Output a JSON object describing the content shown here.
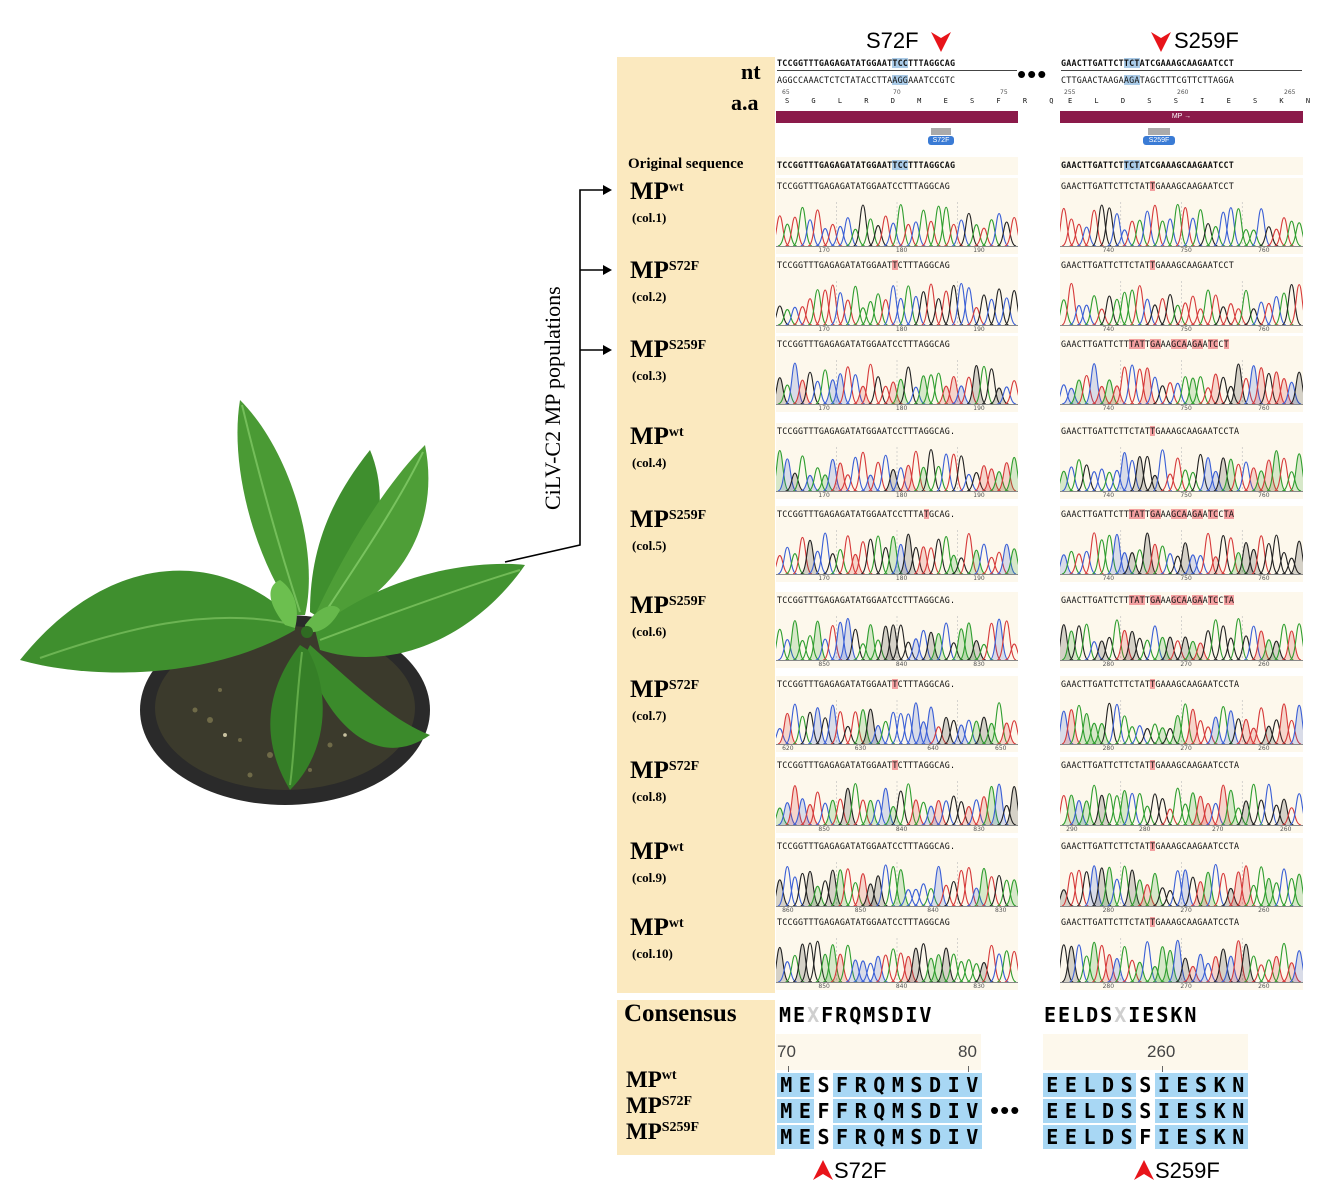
{
  "colors": {
    "label_panel": "#fbe9bf",
    "mutation": "#f3a0a0",
    "selection": "#aacbe8",
    "mp_bar": "#8b1a4a",
    "arrow": "#e8141a",
    "consensus_cell": "#a8d7f4"
  },
  "header": {
    "mut1": "S72F",
    "mut2": "S259F",
    "nt_label": "nt",
    "aa_label": "a.a",
    "ellipsis": "•••",
    "left": {
      "top_seq": "TCCGGTTTGAGAGATATGGAATCCTTTAGGCAG",
      "bottom_seq": "AGGCCAAACTCTCTATACCTTAGGAAATCCGTC",
      "ticks": [
        "65",
        "70",
        "75"
      ],
      "aa": "S G L R D M E S F R Q",
      "badge": "S72F"
    },
    "right": {
      "top_seq": "GAACTTGATTCTTCTATCGAAAGCAAGAATCCT",
      "bottom_seq": "CTTGAACTAAGAAGATAGCTTTCGTTCTTAGGA",
      "ticks": [
        "255",
        "260",
        "265"
      ],
      "aa": "E L D S S I E S K N P",
      "mp_bar_label": "MP →",
      "badge": "S259F"
    }
  },
  "side_label": "CiLV-C2 MP populations",
  "original": {
    "label": "Original sequence",
    "left": "TCCGGTTTGAGAGATATGGAATCCTTTAGGCAG",
    "right": "GAACTTGATTCTTCTATCGAAAGCAAGAATCCT"
  },
  "rows": [
    {
      "mp": "MP",
      "sup": "wt",
      "col": "(col.1)",
      "left": "TCCGGTTTGAGAGATATGGAATCCTTTAGGCAG",
      "right": "GAACTTGATTCTTCTATTGAAAGCAAGAATCCT",
      "lticks": [
        "170",
        "180",
        "190"
      ],
      "rticks": [
        "740",
        "750",
        "760"
      ]
    },
    {
      "mp": "MP",
      "sup": "S72F",
      "col": "(col.2)",
      "left": "TCCGGTTTGAGAGATATGGAATTCTTTAGGCAG",
      "right": "GAACTTGATTCTTCTATTGAAAGCAAGAATCCT",
      "lticks": [
        "170",
        "180",
        "190"
      ],
      "rticks": [
        "740",
        "750",
        "760"
      ]
    },
    {
      "mp": "MP",
      "sup": "S259F",
      "col": "(col.3)",
      "left": "TCCGGTTTGAGAGATATGGAATCCTTTAGGCAG",
      "right": "GAACTTGATTCTTTATTGAAAGCAAGAATCCT",
      "lticks": [
        "170",
        "180",
        "190"
      ],
      "rticks": [
        "740",
        "750",
        "760"
      ]
    },
    {
      "mp": "MP",
      "sup": "wt",
      "col": "(col.4)",
      "left": "TCCGGTTTGAGAGATATGGAATCCTTTAGGCAG.",
      "right": "GAACTTGATTCTTCTATTGAAAGCAAGAATCCTA",
      "lticks": [
        "170",
        "180",
        "190"
      ],
      "rticks": [
        "740",
        "750",
        "760"
      ]
    },
    {
      "mp": "MP",
      "sup": "S259F",
      "col": "(col.5)",
      "left": "TCCGGTTTGAGAGATATGGAATCCTTTATGCAG.",
      "right": "GAACTTGATTCTTTATTGAAAGCAAGAATCCTA",
      "lticks": [
        "170",
        "180",
        "190"
      ],
      "rticks": [
        "740",
        "750",
        "760"
      ]
    },
    {
      "mp": "MP",
      "sup": "S259F",
      "col": "(col.6)",
      "left": "TCCGGTTTGAGAGATATGGAATCCTTTAGGCAG.",
      "right": "GAACTTGATTCTTTATTGAAAGCAAGAATCCTA",
      "lticks": [
        "850",
        "840",
        "830"
      ],
      "rticks": [
        "280",
        "270",
        "260"
      ]
    },
    {
      "mp": "MP",
      "sup": "S72F",
      "col": "(col.7)",
      "left": "TCCGGTTTGAGAGATATGGAATTCTTTAGGCAG.",
      "right": "GAACTTGATTCTTCTATTGAAAGCAAGAATCCTA",
      "lticks": [
        "620",
        "630",
        "640",
        "650"
      ],
      "rticks": [
        "280",
        "270",
        "260"
      ]
    },
    {
      "mp": "MP",
      "sup": "S72F",
      "col": "(col.8)",
      "left": "TCCGGTTTGAGAGATATGGAATTCTTTAGGCAG.",
      "right": "GAACTTGATTCTTCTATTGAAAGCAAGAATCCTA",
      "lticks": [
        "850",
        "840",
        "830"
      ],
      "rticks": [
        "290",
        "280",
        "270",
        "260"
      ]
    },
    {
      "mp": "MP",
      "sup": "wt",
      "col": "(col.9)",
      "left": "TCCGGTTTGAGAGATATGGAATCCTTTAGGCAG.",
      "right": "GAACTTGATTCTTCTATTGAAAGCAAGAATCCTA",
      "lticks": [
        "860",
        "850",
        "840",
        "830"
      ],
      "rticks": [
        "280",
        "270",
        "260"
      ]
    },
    {
      "mp": "MP",
      "sup": "wt",
      "col": "(col.10)",
      "left": "TCCGGTTTGAGAGATATGGAATCCTTTAGGCAG",
      "right": "GAACTTGATTCTTCTATTGAAAGCAAGAATCCTA",
      "lticks": [
        "850",
        "840",
        "830"
      ],
      "rticks": [
        "280",
        "270",
        "260"
      ]
    }
  ],
  "consensus": {
    "label": "Consensus",
    "left_seq": "MEXFRQMSDIV",
    "right_seq": "EELDSXIESKN",
    "left_ticks": [
      "70",
      "80"
    ],
    "right_ticks": [
      "260"
    ],
    "rows": [
      {
        "mp": "MP",
        "sup": "wt",
        "left": "MESFRQMSDIV",
        "right": "EELDSSIESKN"
      },
      {
        "mp": "MP",
        "sup": "S72F",
        "left": "MEFFRQMSDIV",
        "right": "EELDSSIESKN"
      },
      {
        "mp": "MP",
        "sup": "S259F",
        "left": "MESFRQMSDIV",
        "right": "EELDSFIESKN"
      }
    ],
    "bottom_mut1": "S72F",
    "bottom_mut2": "S259F",
    "ellipsis": "•••"
  }
}
